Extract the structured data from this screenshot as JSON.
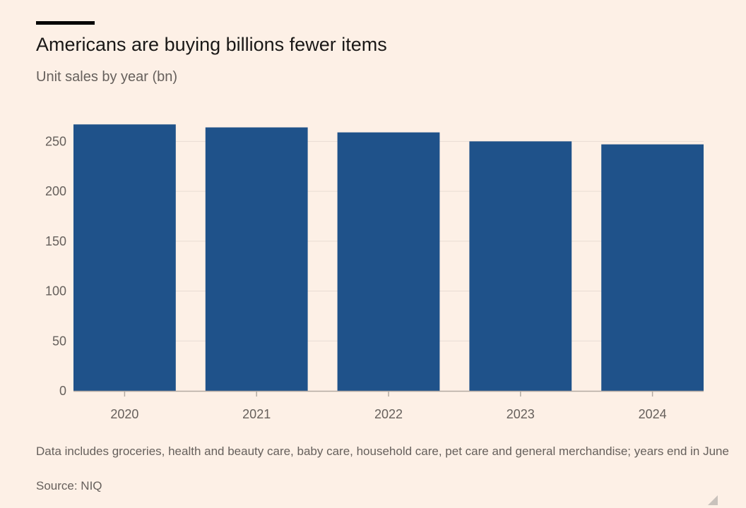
{
  "header": {
    "title": "Americans are buying billions fewer items",
    "subtitle": "Unit sales by year (bn)"
  },
  "colors": {
    "bar": "#1f528a",
    "grid": "#e8dcd3",
    "axis": "#b3aaa2",
    "tick_text": "#66605c",
    "background": "#fdf0e6"
  },
  "chart_data": {
    "type": "bar",
    "title": "Americans are buying billions fewer items",
    "subtitle": "Unit sales by year (bn)",
    "xlabel": "",
    "ylabel": "",
    "categories": [
      "2020",
      "2021",
      "2022",
      "2023",
      "2024"
    ],
    "values": [
      267,
      264,
      259,
      250,
      247
    ],
    "ylim": [
      0,
      275
    ],
    "yticks": [
      0,
      50,
      100,
      150,
      200,
      250
    ],
    "grid": true,
    "legend": "none"
  },
  "footer": {
    "note": "Data includes groceries, health and beauty care, baby care, household care, pet care and general merchandise; years end in June",
    "source": "Source: NIQ"
  }
}
